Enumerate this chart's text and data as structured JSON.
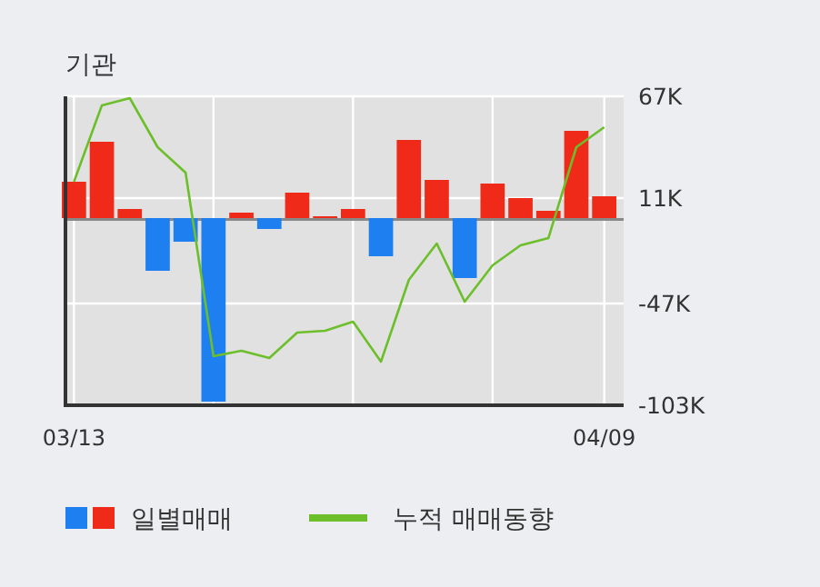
{
  "chart_data": {
    "type": "bar",
    "title": "기관",
    "categories": [
      "03/13",
      null,
      null,
      null,
      null,
      null,
      null,
      null,
      null,
      null,
      null,
      null,
      null,
      null,
      null,
      null,
      null,
      null,
      null,
      "04/09"
    ],
    "series": [
      {
        "name": "일별매매",
        "values": [
          20,
          42,
          5,
          -29,
          -13,
          -101,
          3,
          -6,
          14,
          1,
          5,
          -21,
          43,
          21,
          -33,
          19,
          11,
          4,
          48,
          12
        ],
        "colors": [
          "#f02a18",
          "#f02a18",
          "#f02a18",
          "#1e7ff0",
          "#1e7ff0",
          "#1e7ff0",
          "#f02a18",
          "#1e7ff0",
          "#f02a18",
          "#f02a18",
          "#f02a18",
          "#1e7ff0",
          "#f02a18",
          "#f02a18",
          "#1e7ff0",
          "#f02a18",
          "#f02a18",
          "#f02a18",
          "#f02a18",
          "#f02a18"
        ]
      },
      {
        "name": "누적 매매동향",
        "type": "line",
        "color": "#6cbf2a",
        "values": [
          20,
          62,
          66,
          39,
          25,
          -76,
          -73,
          -77,
          -63,
          -62,
          -57,
          -79,
          -34,
          -14,
          -46,
          -26,
          -15,
          -11,
          39,
          50
        ]
      }
    ],
    "ylim": [
      -103,
      67
    ],
    "yticks": [
      {
        "value": 67,
        "label": "67K"
      },
      {
        "value": 11,
        "label": "11K"
      },
      {
        "value": -47,
        "label": "-47K"
      },
      {
        "value": -103,
        "label": "-103K"
      }
    ],
    "grid": true,
    "legend": "bottom"
  }
}
